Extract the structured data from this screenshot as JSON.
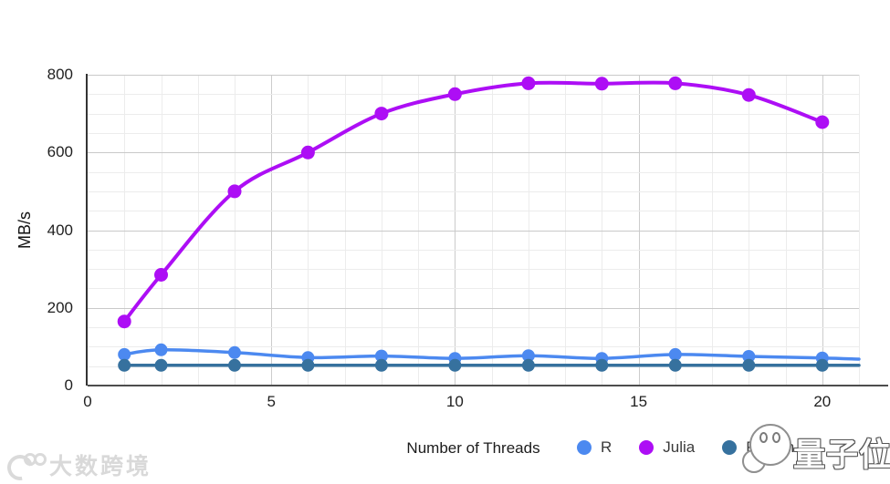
{
  "chart_data": {
    "type": "line",
    "title": "",
    "xlabel": "Number of Threads",
    "ylabel": "MB/s",
    "xlim": [
      0,
      21
    ],
    "ylim": [
      0,
      800
    ],
    "x_ticks": [
      0,
      5,
      10,
      15,
      20
    ],
    "y_ticks": [
      0,
      200,
      400,
      600,
      800
    ],
    "minor_grid_step_x": 1,
    "minor_grid_step_y": 50,
    "grid": "major and minor, light gray",
    "legend_position": "bottom",
    "x": [
      1,
      2,
      4,
      6,
      8,
      10,
      12,
      14,
      16,
      18,
      20
    ],
    "series": [
      {
        "name": "R",
        "color": "#4c89f0",
        "values": [
          80,
          92,
          85,
          72,
          76,
          70,
          77,
          70,
          80,
          75,
          71
        ],
        "tail": {
          "x": 21,
          "value": 68
        }
      },
      {
        "name": "Julia",
        "color": "#ad0ef5",
        "values": [
          165,
          285,
          500,
          600,
          700,
          750,
          778,
          777,
          778,
          748,
          678
        ]
      },
      {
        "name": "Python",
        "color": "#36719e",
        "values": [
          52,
          52,
          52,
          52,
          52,
          52,
          52,
          52,
          52,
          52,
          52
        ],
        "tail": {
          "x": 21,
          "value": 52
        }
      }
    ],
    "axis_colors": {
      "axis_line": "#333333",
      "grid_major": "#cccccc",
      "grid_minor": "#ececec",
      "tick_text": "#1f1f1f"
    }
  },
  "watermarks": {
    "bottom_right_text": "量子位",
    "bottom_left_text": "大数跨境"
  }
}
